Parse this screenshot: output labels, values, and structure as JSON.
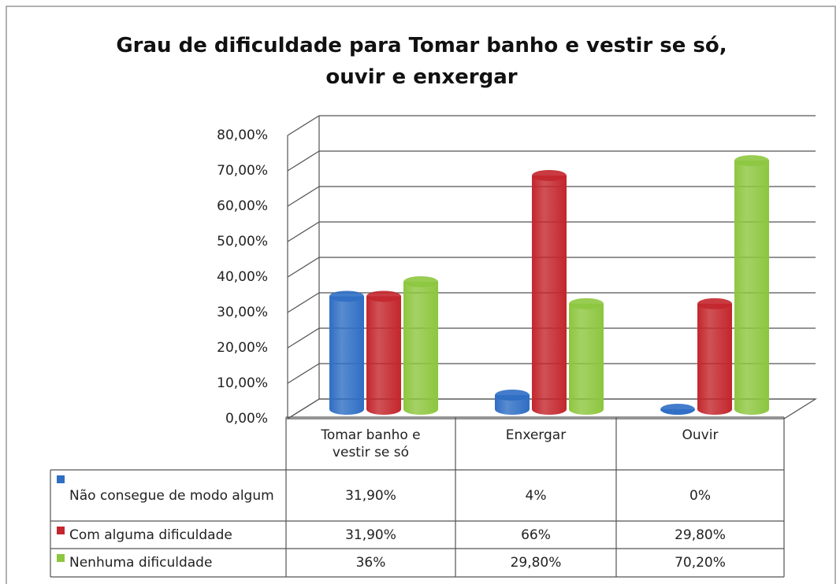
{
  "chart_data": {
    "type": "bar3d",
    "title": "Grau de dificuldade para Tomar banho e vestir se só, ouvir e enxergar",
    "categories": [
      "Tomar banho e vestir se só",
      "Enxergar",
      "Ouvir"
    ],
    "series": [
      {
        "name": "Não consegue de modo algum",
        "color": "#2f6ec4",
        "values": [
          31.9,
          4,
          0
        ],
        "value_labels": [
          "31,90%",
          "4%",
          "0%"
        ]
      },
      {
        "name": "Com alguma dificuldade",
        "color": "#c3262c",
        "values": [
          31.9,
          66,
          29.8
        ],
        "value_labels": [
          "31,90%",
          "66%",
          "29,80%"
        ]
      },
      {
        "name": "Nenhuma dificuldade",
        "color": "#8dc63f",
        "values": [
          36,
          29.8,
          70.2
        ],
        "value_labels": [
          "36%",
          "29,80%",
          "70,20%"
        ]
      }
    ],
    "ylim": [
      0,
      80
    ],
    "yticks": [
      {
        "value": 0,
        "label": "0,00%"
      },
      {
        "value": 10,
        "label": "10,00%"
      },
      {
        "value": 20,
        "label": "20,00%"
      },
      {
        "value": 30,
        "label": "30,00%"
      },
      {
        "value": 40,
        "label": "40,00%"
      },
      {
        "value": 50,
        "label": "50,00%"
      },
      {
        "value": 60,
        "label": "60,00%"
      },
      {
        "value": 70,
        "label": "70,00%"
      },
      {
        "value": 80,
        "label": "80,00%"
      }
    ],
    "grid": true
  }
}
